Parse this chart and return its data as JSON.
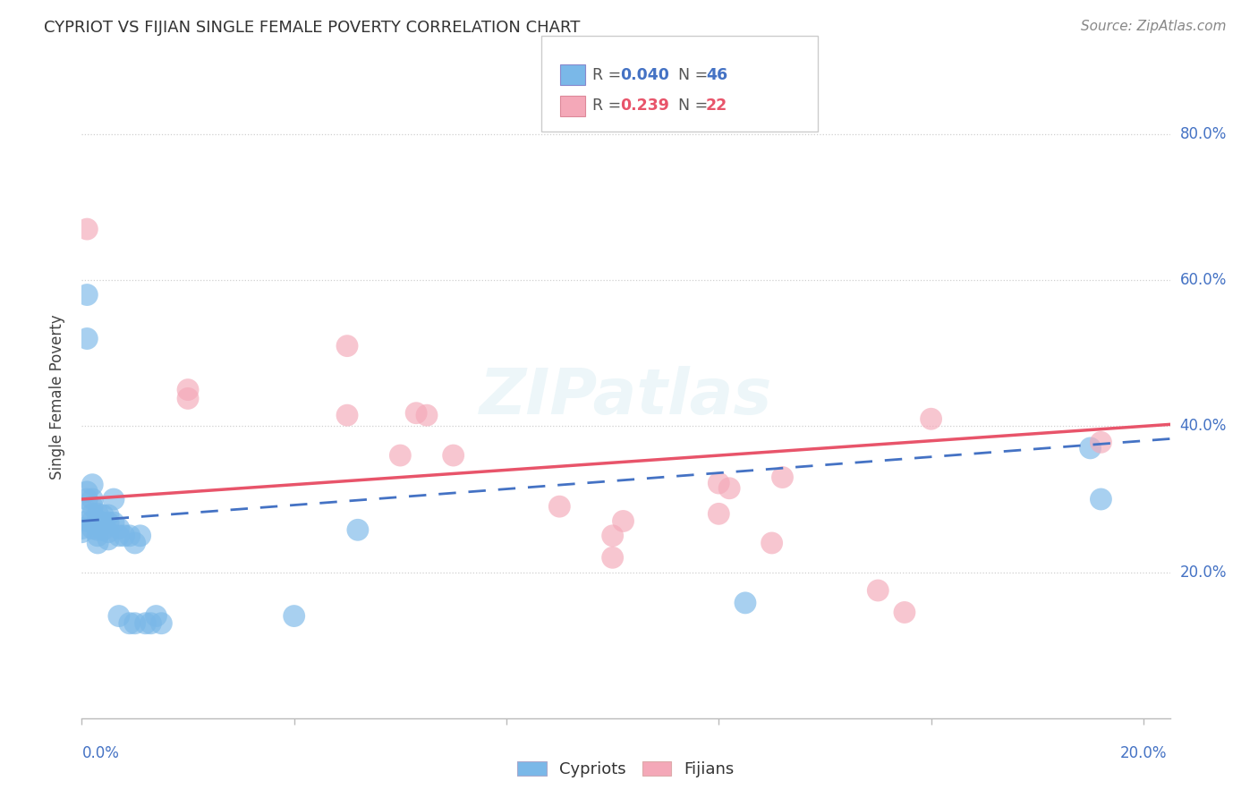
{
  "title": "CYPRIOT VS FIJIAN SINGLE FEMALE POVERTY CORRELATION CHART",
  "source": "Source: ZipAtlas.com",
  "ylabel": "Single Female Poverty",
  "cypriot_R": 0.04,
  "cypriot_N": 46,
  "fijian_R": 0.239,
  "fijian_N": 22,
  "cypriot_color": "#7ab8e8",
  "fijian_color": "#f4a8b8",
  "cypriot_line_color": "#4472c4",
  "fijian_line_color": "#e8546a",
  "axis_label_color": "#4472c4",
  "background_color": "#ffffff",
  "grid_color": "#d0d0d0",
  "xlim": [
    0.0,
    0.205
  ],
  "ylim": [
    0.0,
    0.88
  ],
  "ytick_vals": [
    0.2,
    0.4,
    0.6,
    0.8
  ],
  "xtick_vals": [
    0.0,
    0.04,
    0.08,
    0.12,
    0.16,
    0.2
  ],
  "cypriot_x": [
    0.0,
    0.0,
    0.001,
    0.001,
    0.001,
    0.001,
    0.001,
    0.002,
    0.002,
    0.002,
    0.002,
    0.002,
    0.002,
    0.003,
    0.003,
    0.003,
    0.003,
    0.003,
    0.003,
    0.004,
    0.004,
    0.004,
    0.005,
    0.005,
    0.005,
    0.005,
    0.006,
    0.006,
    0.007,
    0.007,
    0.007,
    0.008,
    0.009,
    0.009,
    0.01,
    0.01,
    0.011,
    0.012,
    0.013,
    0.014,
    0.015,
    0.04,
    0.052,
    0.125,
    0.19,
    0.192
  ],
  "cypriot_y": [
    0.26,
    0.255,
    0.58,
    0.52,
    0.31,
    0.3,
    0.27,
    0.32,
    0.3,
    0.29,
    0.28,
    0.27,
    0.26,
    0.28,
    0.27,
    0.265,
    0.258,
    0.25,
    0.24,
    0.278,
    0.268,
    0.258,
    0.278,
    0.268,
    0.255,
    0.245,
    0.3,
    0.268,
    0.26,
    0.25,
    0.14,
    0.25,
    0.25,
    0.13,
    0.24,
    0.13,
    0.25,
    0.13,
    0.13,
    0.14,
    0.13,
    0.14,
    0.258,
    0.158,
    0.37,
    0.3
  ],
  "fijian_x": [
    0.001,
    0.02,
    0.02,
    0.05,
    0.05,
    0.06,
    0.063,
    0.065,
    0.07,
    0.09,
    0.1,
    0.1,
    0.102,
    0.12,
    0.12,
    0.122,
    0.13,
    0.132,
    0.15,
    0.155,
    0.16,
    0.192
  ],
  "fijian_y": [
    0.67,
    0.45,
    0.438,
    0.51,
    0.415,
    0.36,
    0.418,
    0.415,
    0.36,
    0.29,
    0.25,
    0.22,
    0.27,
    0.322,
    0.28,
    0.315,
    0.24,
    0.33,
    0.175,
    0.145,
    0.41,
    0.378
  ]
}
